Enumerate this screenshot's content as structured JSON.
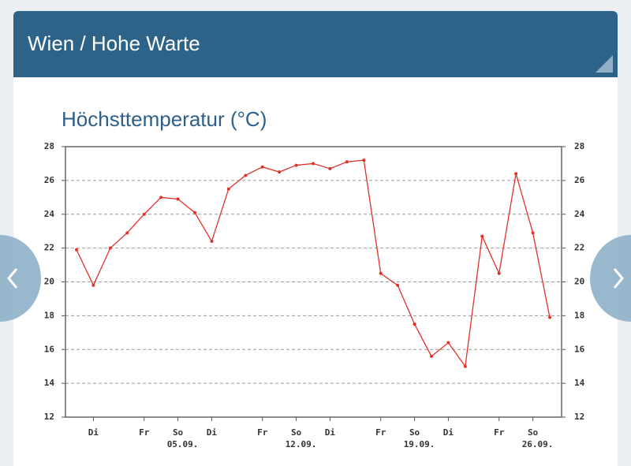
{
  "header": {
    "title": "Wien / Hohe Warte"
  },
  "chart_data": {
    "type": "line",
    "title": "Höchsttemperatur (°C)",
    "categories": [
      null,
      "Di",
      null,
      null,
      "Fr",
      null,
      "So",
      null,
      "Di",
      null,
      null,
      "Fr",
      null,
      "So",
      null,
      "Di",
      null,
      null,
      "Fr",
      null,
      "So",
      null,
      "Di",
      null,
      null,
      "Fr",
      null,
      "So",
      null
    ],
    "dates": [
      null,
      null,
      null,
      null,
      null,
      null,
      "05.09.",
      null,
      null,
      null,
      null,
      null,
      null,
      "12.09.",
      null,
      null,
      null,
      null,
      null,
      null,
      "19.09.",
      null,
      null,
      null,
      null,
      null,
      null,
      "26.09.",
      null
    ],
    "values": [
      21.9,
      19.8,
      22.0,
      22.9,
      24.0,
      25.0,
      24.9,
      24.1,
      22.4,
      25.5,
      26.3,
      26.8,
      26.5,
      26.9,
      27.0,
      26.7,
      27.1,
      27.2,
      20.5,
      19.8,
      17.5,
      15.6,
      16.4,
      15.0,
      22.7,
      20.5,
      26.4,
      22.9,
      17.9
    ],
    "color": "#e0322a",
    "ylim": [
      12,
      28
    ],
    "yticks": [
      12,
      14,
      16,
      18,
      20,
      22,
      24,
      26,
      28
    ],
    "y2lim": [
      12,
      28
    ],
    "y2ticks": [
      12,
      14,
      16,
      18,
      20,
      22,
      24,
      26,
      28
    ],
    "grid": true
  }
}
